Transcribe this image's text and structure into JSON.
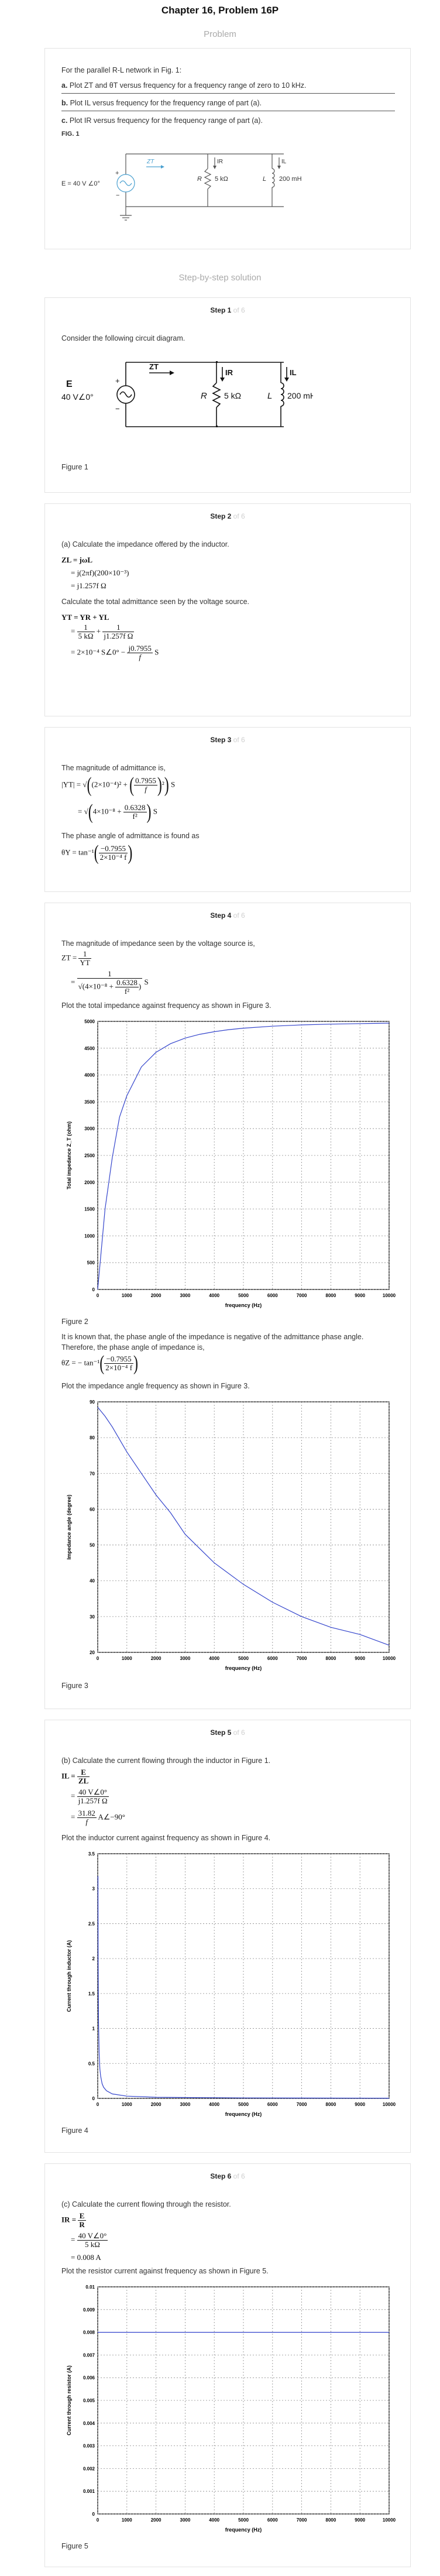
{
  "header": {
    "chapter_title": "Chapter 16, Problem 16P",
    "problem_label": "Problem",
    "solution_label": "Step-by-step solution"
  },
  "problem": {
    "intro": "For the parallel R-L network in Fig. 1:",
    "part_a_key": "a.",
    "part_a": "Plot ZT and θT versus frequency for a frequency range of zero to 10 kHz.",
    "part_b_key": "b.",
    "part_b": "Plot IL versus frequency for the frequency range of part (a).",
    "part_c_key": "c.",
    "part_c": "Plot IR versus frequency for the frequency range of part (a).",
    "fig_label": "FIG. 1",
    "circuit": {
      "source": "E = 40 V ∠0°",
      "zt": "ZT",
      "ir": "IR",
      "il": "IL",
      "r": "R",
      "r_value": "5 kΩ",
      "l": "L",
      "l_value": "200 mH",
      "plus": "+",
      "minus": "−"
    }
  },
  "steps": [
    {
      "label": "Step 1",
      "of": "of 6",
      "text": "Consider the following circuit diagram.",
      "figure_caption": "Figure 1",
      "circuit": {
        "e": "E",
        "e_value": "40 V∠0°",
        "zt": "ZT",
        "ir": "IR",
        "il": "IL",
        "r": "R",
        "r_value": "5 kΩ",
        "l": "L",
        "l_value": "200 mH",
        "plus": "+",
        "minus": "−"
      }
    },
    {
      "label": "Step 2",
      "of": "of 6",
      "text1": "(a) Calculate the impedance offered by the inductor.",
      "text2": "Calculate the total admittance seen by the voltage source.",
      "eq": {
        "zl_lhs": "ZL = jωL",
        "zl_line2": "= j(2πf)(200×10⁻³)",
        "zl_line3": "= j1.257f Ω",
        "yt_lhs": "YT = YR + YL",
        "yt_frac1_num": "1",
        "yt_frac1_den": "5 kΩ",
        "yt_frac2_num": "1",
        "yt_frac2_den": "j1.257f Ω",
        "yt_line3_a": "= 2×10⁻⁴ S∠0° − ",
        "yt_line3_num": "j0.7955",
        "yt_line3_den": "f",
        "unit_s": "S"
      }
    },
    {
      "label": "Step 3",
      "of": "of 6",
      "text1": "The magnitude of admittance is,",
      "text2": "The phase angle of admittance is found as",
      "eq": {
        "lhs": "|YT| =",
        "term1": "(2×10⁻⁴)²",
        "term2_num": "0.7955",
        "term2_den": "f",
        "line2_a": "4×10⁻⁸ + ",
        "line2_num": "0.6328",
        "line2_den": "f²",
        "unit_s": "S",
        "theta_lhs": "θY = tan⁻¹",
        "theta_num": "−0.7955",
        "theta_den": "2×10⁻⁴ f"
      }
    },
    {
      "label": "Step 4",
      "of": "of 6",
      "text1": "The magnitude of impedance seen by the voltage source is,",
      "text2": "Plot the total impedance against frequency as shown in Figure 3.",
      "text3": "It is known that, the phase angle of the impedance is negative of the admittance phase angle.",
      "text4": "Therefore, the phase angle of impedance is,",
      "text5": "Plot the impedance angle frequency as shown in Figure 3.",
      "fig2_caption": "Figure 2",
      "fig3_caption": "Figure 3",
      "eq": {
        "zt_lhs": "ZT = ",
        "zt_num": "1",
        "zt_den": "YT",
        "line2_num": "1",
        "line2_den_a": "4×10⁻⁸ + ",
        "line2_den_num": "0.6328",
        "line2_den_den": "f²",
        "unit_s": "S",
        "theta_lhs": "θZ = − tan⁻¹",
        "theta_num": "−0.7955",
        "theta_den": "2×10⁻⁴ f"
      }
    },
    {
      "label": "Step 5",
      "of": "of 6",
      "text1": "(b) Calculate the current flowing through the inductor in Figure 1.",
      "text2": "Plot the inductor current against frequency as shown in Figure 4.",
      "fig4_caption": "Figure 4",
      "eq": {
        "il_lhs": "IL = ",
        "il_num": "E",
        "il_den": "ZL",
        "line2_num": "40 V∠0°",
        "line2_den": "j1.257f Ω",
        "line3_num": "31.82",
        "line3_den": "f",
        "line3_tail": "A∠−90°"
      }
    },
    {
      "label": "Step 6",
      "of": "of 6",
      "text1": "(c) Calculate the current flowing through the resistor.",
      "text2": "Plot the resistor current against frequency as shown in Figure 5.",
      "fig5_caption": "Figure 5",
      "eq": {
        "ir_lhs": "IR = ",
        "ir_num": "E",
        "ir_den": "R",
        "line2_num": "40 V∠0°",
        "line2_den": "5 kΩ",
        "line3": "= 0.008 A"
      }
    }
  ],
  "chart_data": [
    {
      "type": "line",
      "ylabel": "Total impedance Z_T (ohm)",
      "xlabel": "frequency (Hz)",
      "xlim": [
        0,
        10000
      ],
      "ylim": [
        0,
        5000
      ],
      "x_ticks": [
        "0",
        "1000",
        "2000",
        "3000",
        "4000",
        "5000",
        "6000",
        "7000",
        "8000",
        "9000",
        "10000"
      ],
      "y_ticks": [
        "0",
        "500",
        "1000",
        "1500",
        "2000",
        "2500",
        "3000",
        "3500",
        "4000",
        "4500",
        "5000"
      ],
      "grid": true,
      "series": [
        {
          "color": "#3344cc",
          "x": [
            0,
            250,
            500,
            750,
            1000,
            1500,
            2000,
            2500,
            3000,
            3500,
            4000,
            4500,
            5000,
            6000,
            7000,
            8000,
            9000,
            10000
          ],
          "y": [
            0,
            1498,
            2460,
            3216,
            3614,
            4152,
            4423,
            4584,
            4688,
            4759,
            4808,
            4846,
            4873,
            4911,
            4934,
            4949,
            4959,
            4967
          ]
        }
      ]
    },
    {
      "type": "line",
      "ylabel": "Impedance angle (degree)",
      "xlabel": "frequency (Hz)",
      "xlim": [
        0,
        10000
      ],
      "ylim": [
        20,
        90
      ],
      "x_ticks": [
        "0",
        "1000",
        "2000",
        "3000",
        "4000",
        "5000",
        "6000",
        "7000",
        "8000",
        "9000",
        "10000"
      ],
      "y_ticks": [
        "20",
        "30",
        "40",
        "50",
        "60",
        "70",
        "80",
        "90"
      ],
      "grid": true,
      "series": [
        {
          "color": "#3344cc",
          "x": [
            0,
            250,
            500,
            1000,
            1500,
            2000,
            2500,
            3000,
            4000,
            5000,
            6000,
            7000,
            8000,
            9000,
            10000
          ],
          "y": [
            88.5,
            86,
            83,
            76,
            70,
            64,
            59,
            53,
            45,
            39,
            34,
            30,
            27,
            25,
            22
          ]
        }
      ]
    },
    {
      "type": "line",
      "ylabel": "Current through inductor (A)",
      "xlabel": "frequency (Hz)",
      "xlim": [
        0,
        10000
      ],
      "ylim": [
        0,
        3.5
      ],
      "x_ticks": [
        "0",
        "1000",
        "2000",
        "3000",
        "4000",
        "5000",
        "6000",
        "7000",
        "8000",
        "9000",
        "10000"
      ],
      "y_ticks": [
        "0",
        "0.5",
        "1",
        "1.5",
        "2",
        "2.5",
        "3",
        "3.5"
      ],
      "grid": true,
      "series": [
        {
          "color": "#3344cc",
          "x": [
            10,
            15,
            20,
            30,
            50,
            75,
            100,
            150,
            200,
            300,
            500,
            1000,
            2000,
            5000,
            10000
          ],
          "y": [
            3.18,
            2.12,
            1.59,
            1.06,
            0.64,
            0.42,
            0.32,
            0.21,
            0.16,
            0.11,
            0.064,
            0.032,
            0.016,
            0.0064,
            0.0032
          ]
        }
      ]
    },
    {
      "type": "line",
      "ylabel": "Current through resistor (A)",
      "xlabel": "frequency (Hz)",
      "xlim": [
        0,
        10000
      ],
      "ylim": [
        0,
        0.01
      ],
      "x_ticks": [
        "0",
        "1000",
        "2000",
        "3000",
        "4000",
        "5000",
        "6000",
        "7000",
        "8000",
        "9000",
        "10000"
      ],
      "y_ticks": [
        "0",
        "0.001",
        "0.002",
        "0.003",
        "0.004",
        "0.005",
        "0.006",
        "0.007",
        "0.008",
        "0.009",
        "0.01"
      ],
      "grid": true,
      "series": [
        {
          "color": "#3344cc",
          "x": [
            0,
            10000
          ],
          "y": [
            0.008,
            0.008
          ]
        }
      ]
    }
  ]
}
